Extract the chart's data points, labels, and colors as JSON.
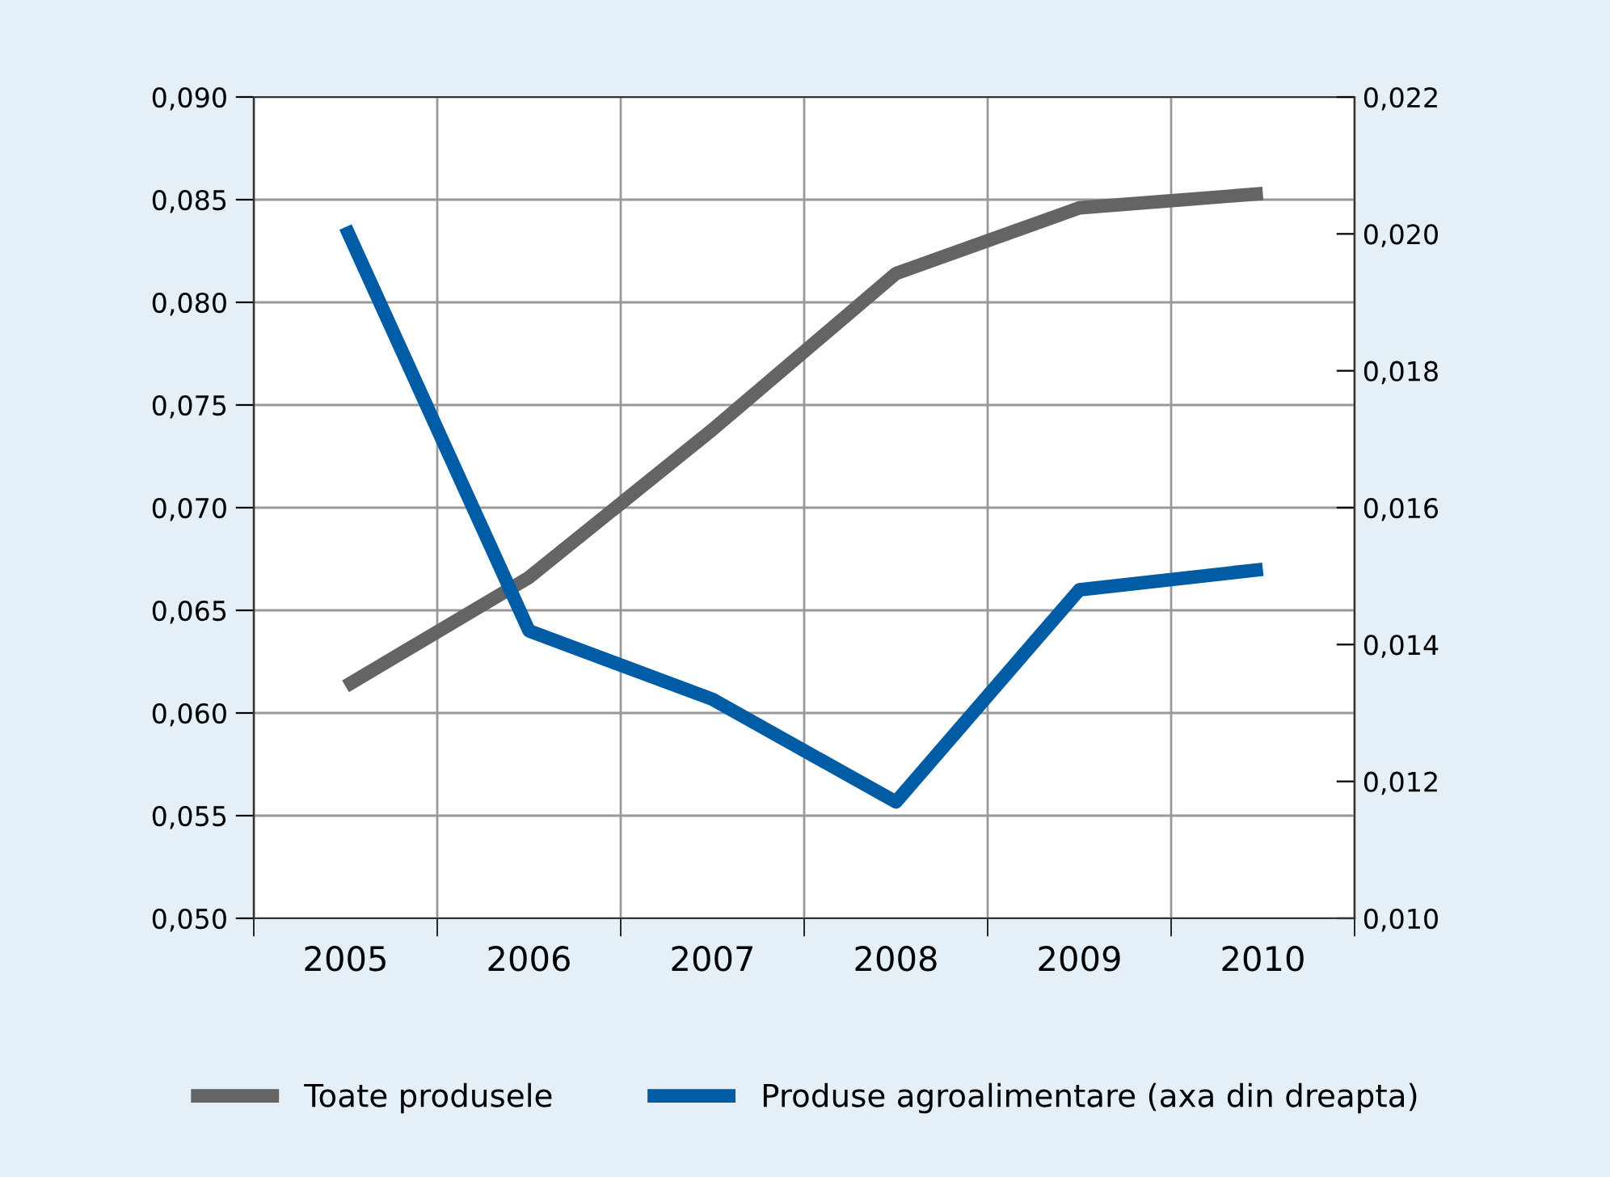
{
  "chart_data": {
    "type": "line",
    "categories": [
      "2005",
      "2006",
      "2007",
      "2008",
      "2009",
      "2010"
    ],
    "series": [
      {
        "name": "Toate produsele",
        "color": "#646464",
        "values": [
          0.0613,
          0.0666,
          0.0738,
          0.0814,
          0.0846,
          0.0853
        ]
      },
      {
        "name": "Produse agroalimentare (axa din dreapta)",
        "color": "#005ca5",
        "axis": "y2",
        "values": [
          0.0201,
          0.0142,
          0.0132,
          0.0117,
          0.0148,
          0.0151
        ]
      }
    ],
    "ylim": [
      0.05,
      0.09
    ],
    "yticks": [
      {
        "value": 0.05,
        "label": "0,050"
      },
      {
        "value": 0.055,
        "label": "0,055"
      },
      {
        "value": 0.06,
        "label": "0,060"
      },
      {
        "value": 0.065,
        "label": "0,065"
      },
      {
        "value": 0.07,
        "label": "0,070"
      },
      {
        "value": 0.075,
        "label": "0,075"
      },
      {
        "value": 0.08,
        "label": "0,080"
      },
      {
        "value": 0.085,
        "label": "0,085"
      },
      {
        "value": 0.09,
        "label": "0,090"
      }
    ],
    "y2lim": [
      0.01,
      0.022
    ],
    "y2ticks": [
      {
        "value": 0.01,
        "label": "0,010"
      },
      {
        "value": 0.012,
        "label": "0,012"
      },
      {
        "value": 0.014,
        "label": "0,014"
      },
      {
        "value": 0.016,
        "label": "0,016"
      },
      {
        "value": 0.018,
        "label": "0,018"
      },
      {
        "value": 0.02,
        "label": "0,020"
      },
      {
        "value": 0.022,
        "label": "0,022"
      }
    ],
    "grid": true,
    "legend": "bottom",
    "marker": "none",
    "line_style": "solid"
  }
}
